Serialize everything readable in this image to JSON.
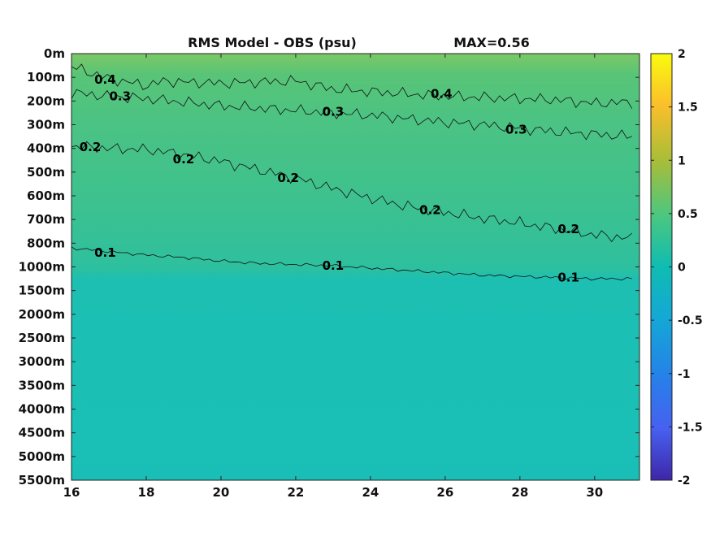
{
  "chart_data": {
    "type": "heatmap",
    "title": "RMS Model - OBS (psu)",
    "subtitle": "MAX=0.56",
    "xlabel": "",
    "ylabel": "",
    "x_ticks": [
      "16",
      "18",
      "20",
      "22",
      "24",
      "26",
      "28",
      "30"
    ],
    "x_range": [
      16,
      31.2
    ],
    "y_ticks": [
      "0m",
      "100m",
      "200m",
      "300m",
      "400m",
      "500m",
      "600m",
      "700m",
      "800m",
      "1000m",
      "1500m",
      "2000m",
      "2500m",
      "3000m",
      "3500m",
      "4000m",
      "4500m",
      "5000m",
      "5500m"
    ],
    "colorbar": {
      "ticks": [
        "2",
        "1.5",
        "1",
        "0.5",
        "0",
        "-0.5",
        "-1",
        "-1.5",
        "-2"
      ],
      "range": [
        -2,
        2
      ],
      "colormap": "parula"
    },
    "contours": [
      {
        "level": 0.4,
        "labels": [
          {
            "text": "0.4",
            "x": 16.9,
            "depth_index": 1.1
          },
          {
            "text": "0.4",
            "x": 25.9,
            "depth_index": 1.7
          }
        ],
        "points": [
          [
            16,
            0.55
          ],
          [
            16.5,
            0.8
          ],
          [
            17,
            1.05
          ],
          [
            17.5,
            1.2
          ],
          [
            18,
            1.35
          ],
          [
            18.5,
            1.15
          ],
          [
            19,
            1.2
          ],
          [
            20,
            1.25
          ],
          [
            21,
            1.2
          ],
          [
            22,
            1.15
          ],
          [
            23,
            1.5
          ],
          [
            24,
            1.6
          ],
          [
            25,
            1.7
          ],
          [
            26,
            1.8
          ],
          [
            27,
            1.85
          ],
          [
            28,
            1.9
          ],
          [
            29,
            1.95
          ],
          [
            30,
            2.1
          ],
          [
            31,
            2.05
          ]
        ]
      },
      {
        "level": 0.3,
        "labels": [
          {
            "text": "0.3",
            "x": 17.3,
            "depth_index": 1.8
          },
          {
            "text": "0.3",
            "x": 23.0,
            "depth_index": 2.45
          },
          {
            "text": "0.3",
            "x": 27.9,
            "depth_index": 3.2
          }
        ],
        "points": [
          [
            16,
            1.65
          ],
          [
            17,
            1.8
          ],
          [
            18,
            1.9
          ],
          [
            19,
            2.05
          ],
          [
            20,
            2.2
          ],
          [
            21,
            2.3
          ],
          [
            22,
            2.4
          ],
          [
            23,
            2.5
          ],
          [
            24,
            2.6
          ],
          [
            25,
            2.75
          ],
          [
            26,
            2.9
          ],
          [
            27,
            3.0
          ],
          [
            28,
            3.15
          ],
          [
            29,
            3.3
          ],
          [
            30,
            3.4
          ],
          [
            31,
            3.5
          ]
        ]
      },
      {
        "level": 0.2,
        "labels": [
          {
            "text": "0.2",
            "x": 16.5,
            "depth_index": 3.95
          },
          {
            "text": "0.2",
            "x": 19.0,
            "depth_index": 4.45
          },
          {
            "text": "0.2",
            "x": 21.8,
            "depth_index": 5.25
          },
          {
            "text": "0.2",
            "x": 25.6,
            "depth_index": 6.6
          },
          {
            "text": "0.2",
            "x": 29.3,
            "depth_index": 7.4
          }
        ],
        "points": [
          [
            16,
            3.9
          ],
          [
            17,
            4.0
          ],
          [
            18,
            4.05
          ],
          [
            19,
            4.25
          ],
          [
            20,
            4.55
          ],
          [
            21,
            4.9
          ],
          [
            22,
            5.25
          ],
          [
            23,
            5.7
          ],
          [
            24,
            6.1
          ],
          [
            25,
            6.45
          ],
          [
            26,
            6.7
          ],
          [
            27,
            6.95
          ],
          [
            28,
            7.15
          ],
          [
            29,
            7.4
          ],
          [
            30,
            7.65
          ],
          [
            31,
            7.8
          ]
        ]
      },
      {
        "level": 0.1,
        "labels": [
          {
            "text": "0.1",
            "x": 16.9,
            "depth_index": 8.4
          },
          {
            "text": "0.1",
            "x": 23.0,
            "depth_index": 8.95
          },
          {
            "text": "0.1",
            "x": 29.3,
            "depth_index": 9.45
          }
        ],
        "points": [
          [
            16,
            8.2
          ],
          [
            17,
            8.35
          ],
          [
            18,
            8.5
          ],
          [
            19,
            8.6
          ],
          [
            20,
            8.75
          ],
          [
            21,
            8.85
          ],
          [
            22,
            8.9
          ],
          [
            23,
            8.95
          ],
          [
            24,
            9.05
          ],
          [
            25,
            9.15
          ],
          [
            26,
            9.25
          ],
          [
            27,
            9.35
          ],
          [
            28,
            9.4
          ],
          [
            29,
            9.45
          ],
          [
            30,
            9.5
          ],
          [
            31,
            9.5
          ]
        ]
      }
    ]
  }
}
